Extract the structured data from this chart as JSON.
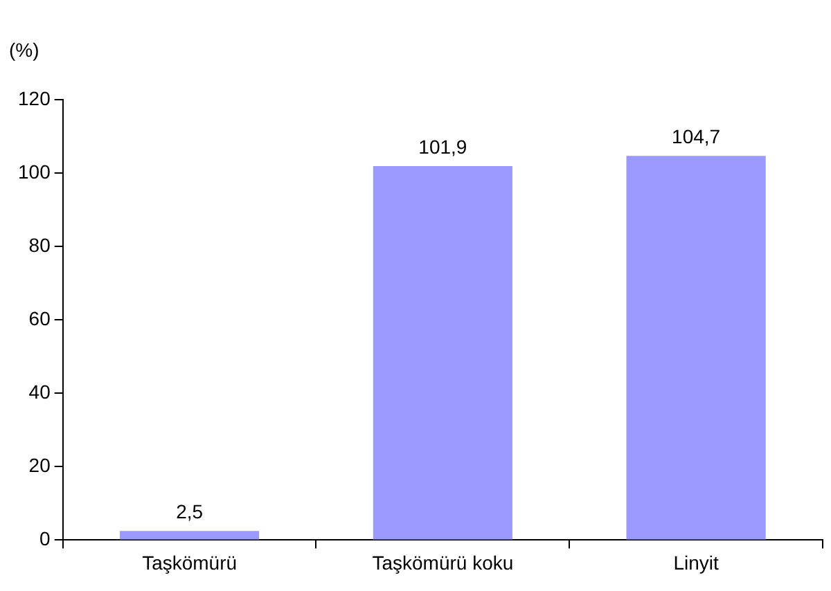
{
  "chart_data": {
    "type": "bar",
    "ylabel": "(%)",
    "categories": [
      "Taşkömürü",
      "Taşkömürü koku",
      "Linyit"
    ],
    "values": [
      2.5,
      101.9,
      104.7
    ],
    "value_labels": [
      "2,5",
      "101,9",
      "104,7"
    ],
    "color": "#9999ff",
    "ylim": [
      0,
      120
    ],
    "yticks": [
      0,
      20,
      40,
      60,
      80,
      100,
      120
    ],
    "grid": false,
    "legend": false
  }
}
